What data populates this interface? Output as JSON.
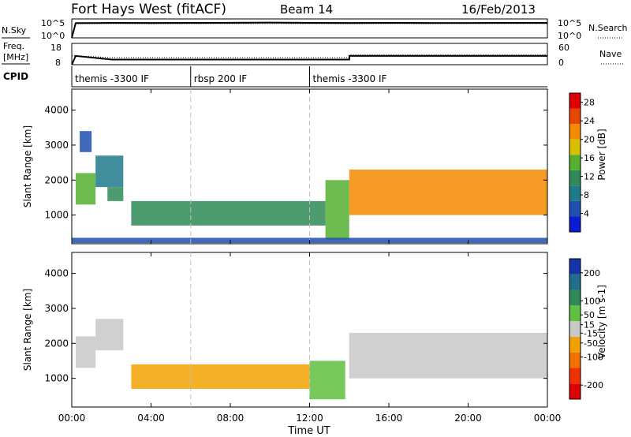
{
  "header": {
    "station": "Fort Hays West (fitACF)",
    "beam": "Beam 14",
    "date": "16/Feb/2013"
  },
  "noise_panel": {
    "left_label": "N.Sky",
    "right_label": "N.Search",
    "left_ticks": [
      "10^5",
      "10^0"
    ],
    "right_ticks": [
      "10^5",
      "10^0"
    ]
  },
  "freq_panel": {
    "left_label_line1": "Freq.",
    "left_label_line2": "[MHz]",
    "right_label": "Nave",
    "left_ticks": [
      "18",
      "8"
    ],
    "right_ticks": [
      "60",
      "0"
    ]
  },
  "cpid_panel": {
    "label": "CPID",
    "segments": [
      {
        "start_hour": 0,
        "text": "themis -3300 IF"
      },
      {
        "start_hour": 6,
        "text": "rbsp 200 IF"
      },
      {
        "start_hour": 12,
        "text": "themis -3300 IF"
      }
    ]
  },
  "x_axis": {
    "label": "Time UT",
    "ticks": [
      "00:00",
      "04:00",
      "08:00",
      "12:00",
      "16:00",
      "20:00",
      "00:00"
    ]
  },
  "chart_data": [
    {
      "type": "line",
      "title": "N.Sky",
      "x_unit": "hours UT",
      "y_scale": "log",
      "ylim": [
        1,
        100000
      ],
      "x": [
        0,
        0.2,
        2,
        4,
        6,
        8,
        10,
        12,
        14,
        16,
        18,
        20,
        22,
        24
      ],
      "series": [
        {
          "name": "N.Sky",
          "values": [
            1,
            8000,
            9000,
            8500,
            9000,
            9500,
            11000,
            9000,
            8500,
            9000,
            8700,
            8800,
            9000,
            9000
          ]
        },
        {
          "name": "N.Search",
          "values": [
            1,
            5000,
            5500,
            5200,
            5400,
            5600,
            6000,
            5500,
            5300,
            5500,
            5400,
            5500,
            5600,
            5600
          ]
        }
      ]
    },
    {
      "type": "line",
      "title": "Freq.",
      "x_unit": "hours UT",
      "ylim": [
        8,
        18
      ],
      "x": [
        0,
        0.2,
        2,
        14,
        14.01,
        24
      ],
      "series": [
        {
          "name": "Freq.",
          "values": [
            8,
            12.1,
            10.4,
            10.4,
            12.1,
            12.1
          ]
        },
        {
          "name": "Nave",
          "values": [
            25,
            25,
            20,
            20,
            28,
            28
          ]
        }
      ]
    },
    {
      "type": "heatmap",
      "title": "Power",
      "xlabel": "Time UT",
      "ylabel": "Slant Range [km]",
      "x_unit": "hours UT",
      "xlim": [
        0,
        24
      ],
      "ylim": [
        180,
        4600
      ],
      "yticks": [
        1000,
        2000,
        3000,
        4000
      ],
      "colorbar": {
        "label": "Power [dB]",
        "ticks": [
          4,
          8,
          12,
          16,
          20,
          24,
          28
        ],
        "range": [
          0,
          30
        ]
      },
      "regions": [
        {
          "t": [
            0.2,
            1.2
          ],
          "r": [
            1300,
            2200
          ],
          "value": 14
        },
        {
          "t": [
            0.4,
            1.0
          ],
          "r": [
            2800,
            3400
          ],
          "value": 5
        },
        {
          "t": [
            1.2,
            2.6
          ],
          "r": [
            1800,
            2700
          ],
          "value": 8
        },
        {
          "t": [
            1.8,
            2.6
          ],
          "r": [
            1400,
            1800
          ],
          "value": 10
        },
        {
          "t": [
            3.0,
            12.8
          ],
          "r": [
            700,
            1400
          ],
          "value": 12
        },
        {
          "t": [
            12.8,
            14.0
          ],
          "r": [
            300,
            2000
          ],
          "value": 16
        },
        {
          "t": [
            14.0,
            24.0
          ],
          "r": [
            1000,
            2300
          ],
          "value": 20
        },
        {
          "t": [
            0.0,
            24.0
          ],
          "r": [
            200,
            350
          ],
          "value": 4
        }
      ]
    },
    {
      "type": "heatmap",
      "title": "Velocity",
      "xlabel": "Time UT",
      "ylabel": "Slant Range [km]",
      "x_unit": "hours UT",
      "xlim": [
        0,
        24
      ],
      "ylim": [
        180,
        4600
      ],
      "yticks": [
        1000,
        2000,
        3000,
        4000
      ],
      "colorbar": {
        "label": "Velocity [m s-1]",
        "ticks": [
          200,
          100,
          50,
          15,
          -15,
          -50,
          -100,
          -200
        ],
        "range": [
          -250,
          250
        ]
      },
      "regions": [
        {
          "t": [
            0.2,
            1.2
          ],
          "r": [
            1300,
            2200
          ],
          "value": 0
        },
        {
          "t": [
            1.2,
            2.6
          ],
          "r": [
            1800,
            2700
          ],
          "value": -20
        },
        {
          "t": [
            3.0,
            12.0
          ],
          "r": [
            700,
            1400
          ],
          "value": -40
        },
        {
          "t": [
            12.0,
            13.8
          ],
          "r": [
            400,
            1500
          ],
          "value": 40
        },
        {
          "t": [
            14.0,
            24.0
          ],
          "r": [
            1000,
            2300
          ],
          "value": 0
        }
      ]
    }
  ],
  "colors": {
    "power_scale": [
      "#0a1bd6",
      "#1f4fb0",
      "#1f7a8a",
      "#2e8b57",
      "#55b030",
      "#d8c000",
      "#f58a00",
      "#e84500",
      "#e00000"
    ],
    "velocity_scale": [
      "#1533aa",
      "#1f6f8a",
      "#2e8b57",
      "#60c040",
      "#c8c8c8",
      "#f2a200",
      "#f07000",
      "#f03000",
      "#e00000"
    ],
    "ground_grey": "#c8c8c8",
    "divider_dash": "#c0c0c0"
  }
}
